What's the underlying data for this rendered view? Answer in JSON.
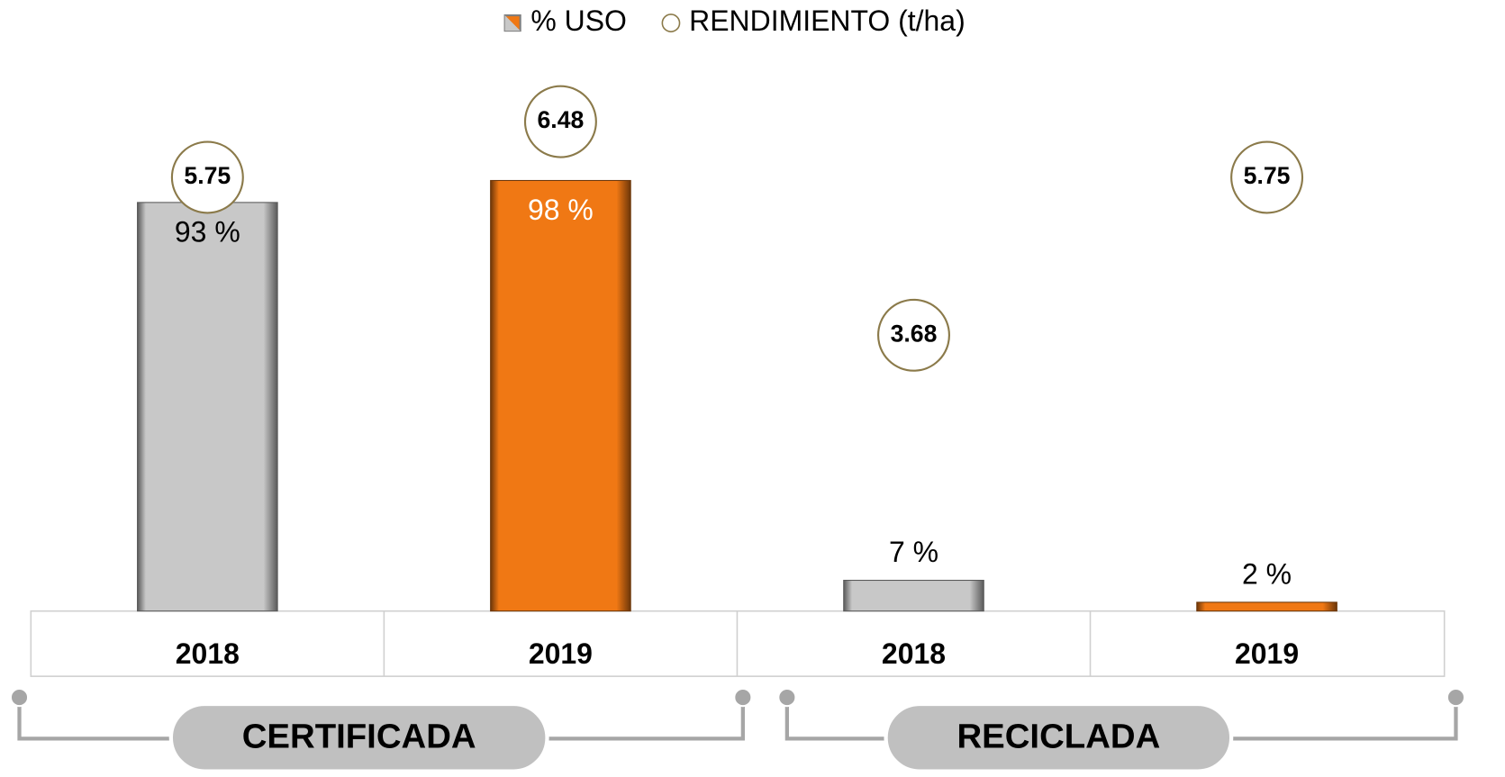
{
  "chart_data": {
    "type": "bar",
    "legend_position": "top",
    "categories": [
      "2018",
      "2019",
      "2018",
      "2019"
    ],
    "groups": [
      "CERTIFICADA",
      "RECICLADA"
    ],
    "series": [
      {
        "name": "% USO",
        "colors": [
          "#c8c8c8",
          "#f07814",
          "#c8c8c8",
          "#f07814"
        ],
        "values": [
          93,
          98,
          7,
          2
        ],
        "value_labels": [
          "93 %",
          "98 %",
          "7 %",
          "2 %"
        ]
      },
      {
        "name": "RENDIMIENTO (t/ha)",
        "type": "scatter",
        "color": "#8b7a4a",
        "values": [
          5.75,
          6.48,
          3.68,
          5.75
        ]
      }
    ]
  }
}
